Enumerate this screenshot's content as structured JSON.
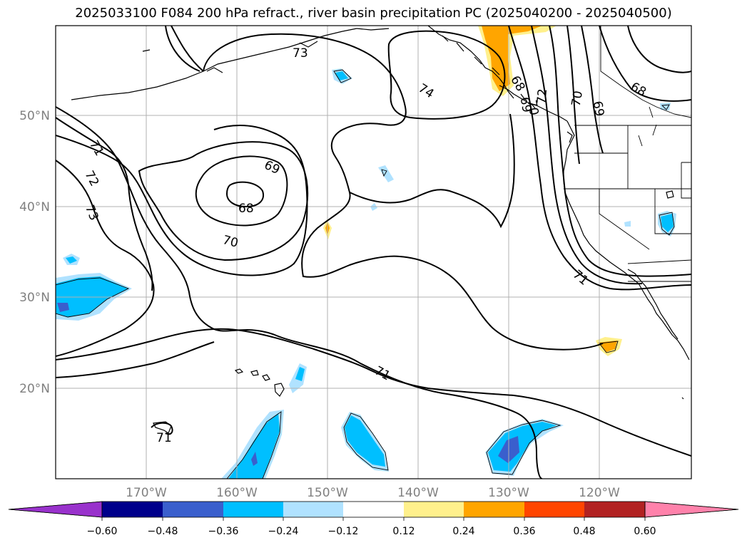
{
  "title": "2025033100 F084 200 hPa refract., river basin precipitation PC (2025040200 - 2025040500)",
  "map": {
    "lon_labels": [
      "170°W",
      "160°W",
      "150°W",
      "140°W",
      "130°W",
      "120°W"
    ],
    "lat_labels": [
      "50°N",
      "40°N",
      "30°N",
      "20°N"
    ],
    "contour_labels": [
      "73",
      "74",
      "70",
      "69",
      "68",
      "71",
      "72",
      "73",
      "69",
      "68",
      "70",
      "71",
      "71",
      "71",
      "69",
      "70",
      "68",
      "72"
    ]
  },
  "colorbar": {
    "ticks": [
      "−0.60",
      "−0.48",
      "−0.36",
      "−0.24",
      "−0.12",
      "0.12",
      "0.24",
      "0.36",
      "0.48",
      "0.60"
    ],
    "colors": [
      "#9932cc",
      "#00008b",
      "#3a5fcd",
      "#00bfff",
      "#b0e2ff",
      "#ffffff",
      "#fff08c",
      "#ffa500",
      "#ff4500",
      "#b22222",
      "#ff82ab"
    ]
  }
}
